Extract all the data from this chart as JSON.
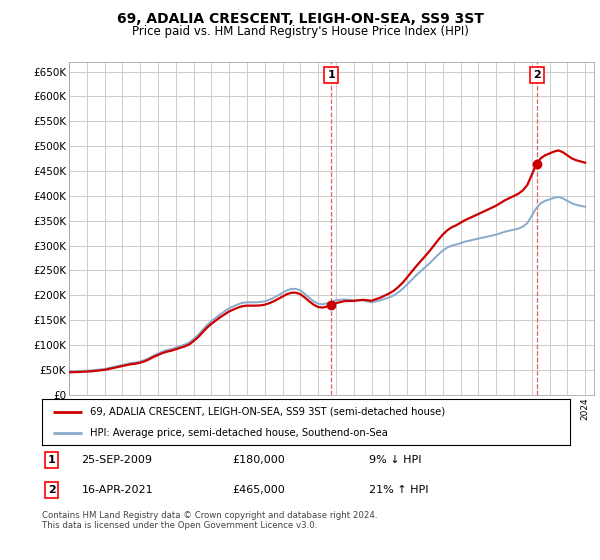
{
  "title": "69, ADALIA CRESCENT, LEIGH-ON-SEA, SS9 3ST",
  "subtitle": "Price paid vs. HM Land Registry's House Price Index (HPI)",
  "ylim": [
    0,
    670000
  ],
  "yticks": [
    0,
    50000,
    100000,
    150000,
    200000,
    250000,
    300000,
    350000,
    400000,
    450000,
    500000,
    550000,
    600000,
    650000
  ],
  "ytick_labels": [
    "£0",
    "£50K",
    "£100K",
    "£150K",
    "£200K",
    "£250K",
    "£300K",
    "£350K",
    "£400K",
    "£450K",
    "£500K",
    "£550K",
    "£600K",
    "£650K"
  ],
  "background_color": "#ffffff",
  "plot_bg_color": "#ffffff",
  "grid_color": "#cccccc",
  "legend_label_red": "69, ADALIA CRESCENT, LEIGH-ON-SEA, SS9 3ST (semi-detached house)",
  "legend_label_blue": "HPI: Average price, semi-detached house, Southend-on-Sea",
  "transaction1_date": "25-SEP-2009",
  "transaction1_price": "£180,000",
  "transaction1_pct": "9% ↓ HPI",
  "transaction2_date": "16-APR-2021",
  "transaction2_price": "£465,000",
  "transaction2_pct": "21% ↑ HPI",
  "footer": "Contains HM Land Registry data © Crown copyright and database right 2024.\nThis data is licensed under the Open Government Licence v3.0.",
  "hpi_years": [
    1995.0,
    1995.25,
    1995.5,
    1995.75,
    1996.0,
    1996.25,
    1996.5,
    1996.75,
    1997.0,
    1997.25,
    1997.5,
    1997.75,
    1998.0,
    1998.25,
    1998.5,
    1998.75,
    1999.0,
    1999.25,
    1999.5,
    1999.75,
    2000.0,
    2000.25,
    2000.5,
    2000.75,
    2001.0,
    2001.25,
    2001.5,
    2001.75,
    2002.0,
    2002.25,
    2002.5,
    2002.75,
    2003.0,
    2003.25,
    2003.5,
    2003.75,
    2004.0,
    2004.25,
    2004.5,
    2004.75,
    2005.0,
    2005.25,
    2005.5,
    2005.75,
    2006.0,
    2006.25,
    2006.5,
    2006.75,
    2007.0,
    2007.25,
    2007.5,
    2007.75,
    2008.0,
    2008.25,
    2008.5,
    2008.75,
    2009.0,
    2009.25,
    2009.5,
    2009.75,
    2010.0,
    2010.25,
    2010.5,
    2010.75,
    2011.0,
    2011.25,
    2011.5,
    2011.75,
    2012.0,
    2012.25,
    2012.5,
    2012.75,
    2013.0,
    2013.25,
    2013.5,
    2013.75,
    2014.0,
    2014.25,
    2014.5,
    2014.75,
    2015.0,
    2015.25,
    2015.5,
    2015.75,
    2016.0,
    2016.25,
    2016.5,
    2016.75,
    2017.0,
    2017.25,
    2017.5,
    2017.75,
    2018.0,
    2018.25,
    2018.5,
    2018.75,
    2019.0,
    2019.25,
    2019.5,
    2019.75,
    2020.0,
    2020.25,
    2020.5,
    2020.75,
    2021.0,
    2021.25,
    2021.5,
    2021.75,
    2022.0,
    2022.25,
    2022.5,
    2022.75,
    2023.0,
    2023.25,
    2023.5,
    2023.75,
    2024.0
  ],
  "hpi_values": [
    47000,
    47200,
    47500,
    48000,
    48500,
    49000,
    50000,
    51000,
    52000,
    54000,
    56000,
    58000,
    60000,
    62000,
    64000,
    65000,
    67000,
    70000,
    74000,
    79000,
    83000,
    87000,
    90000,
    92000,
    95000,
    98000,
    101000,
    105000,
    112000,
    120000,
    130000,
    140000,
    148000,
    155000,
    162000,
    168000,
    174000,
    178000,
    182000,
    185000,
    186000,
    186000,
    186000,
    186500,
    188000,
    191000,
    195000,
    200000,
    205000,
    210000,
    213000,
    213000,
    210000,
    203000,
    195000,
    188000,
    183000,
    182000,
    184000,
    187000,
    190000,
    191000,
    192000,
    191000,
    190000,
    190000,
    190000,
    188000,
    186000,
    188000,
    190000,
    193000,
    196000,
    200000,
    206000,
    213000,
    222000,
    231000,
    240000,
    248000,
    256000,
    264000,
    273000,
    282000,
    290000,
    296000,
    300000,
    302000,
    305000,
    308000,
    310000,
    312000,
    314000,
    316000,
    318000,
    320000,
    322000,
    325000,
    328000,
    330000,
    332000,
    334000,
    338000,
    345000,
    360000,
    375000,
    385000,
    390000,
    393000,
    396000,
    398000,
    395000,
    390000,
    385000,
    382000,
    380000,
    378000
  ],
  "transaction_years": [
    2009.73,
    2021.29
  ],
  "transaction_prices": [
    180000,
    465000
  ],
  "transaction_nums": [
    "1",
    "2"
  ],
  "vline_color": "#e06060",
  "red_color": "#cc0000",
  "blue_color": "#88aacc",
  "dot_color": "#cc0000"
}
